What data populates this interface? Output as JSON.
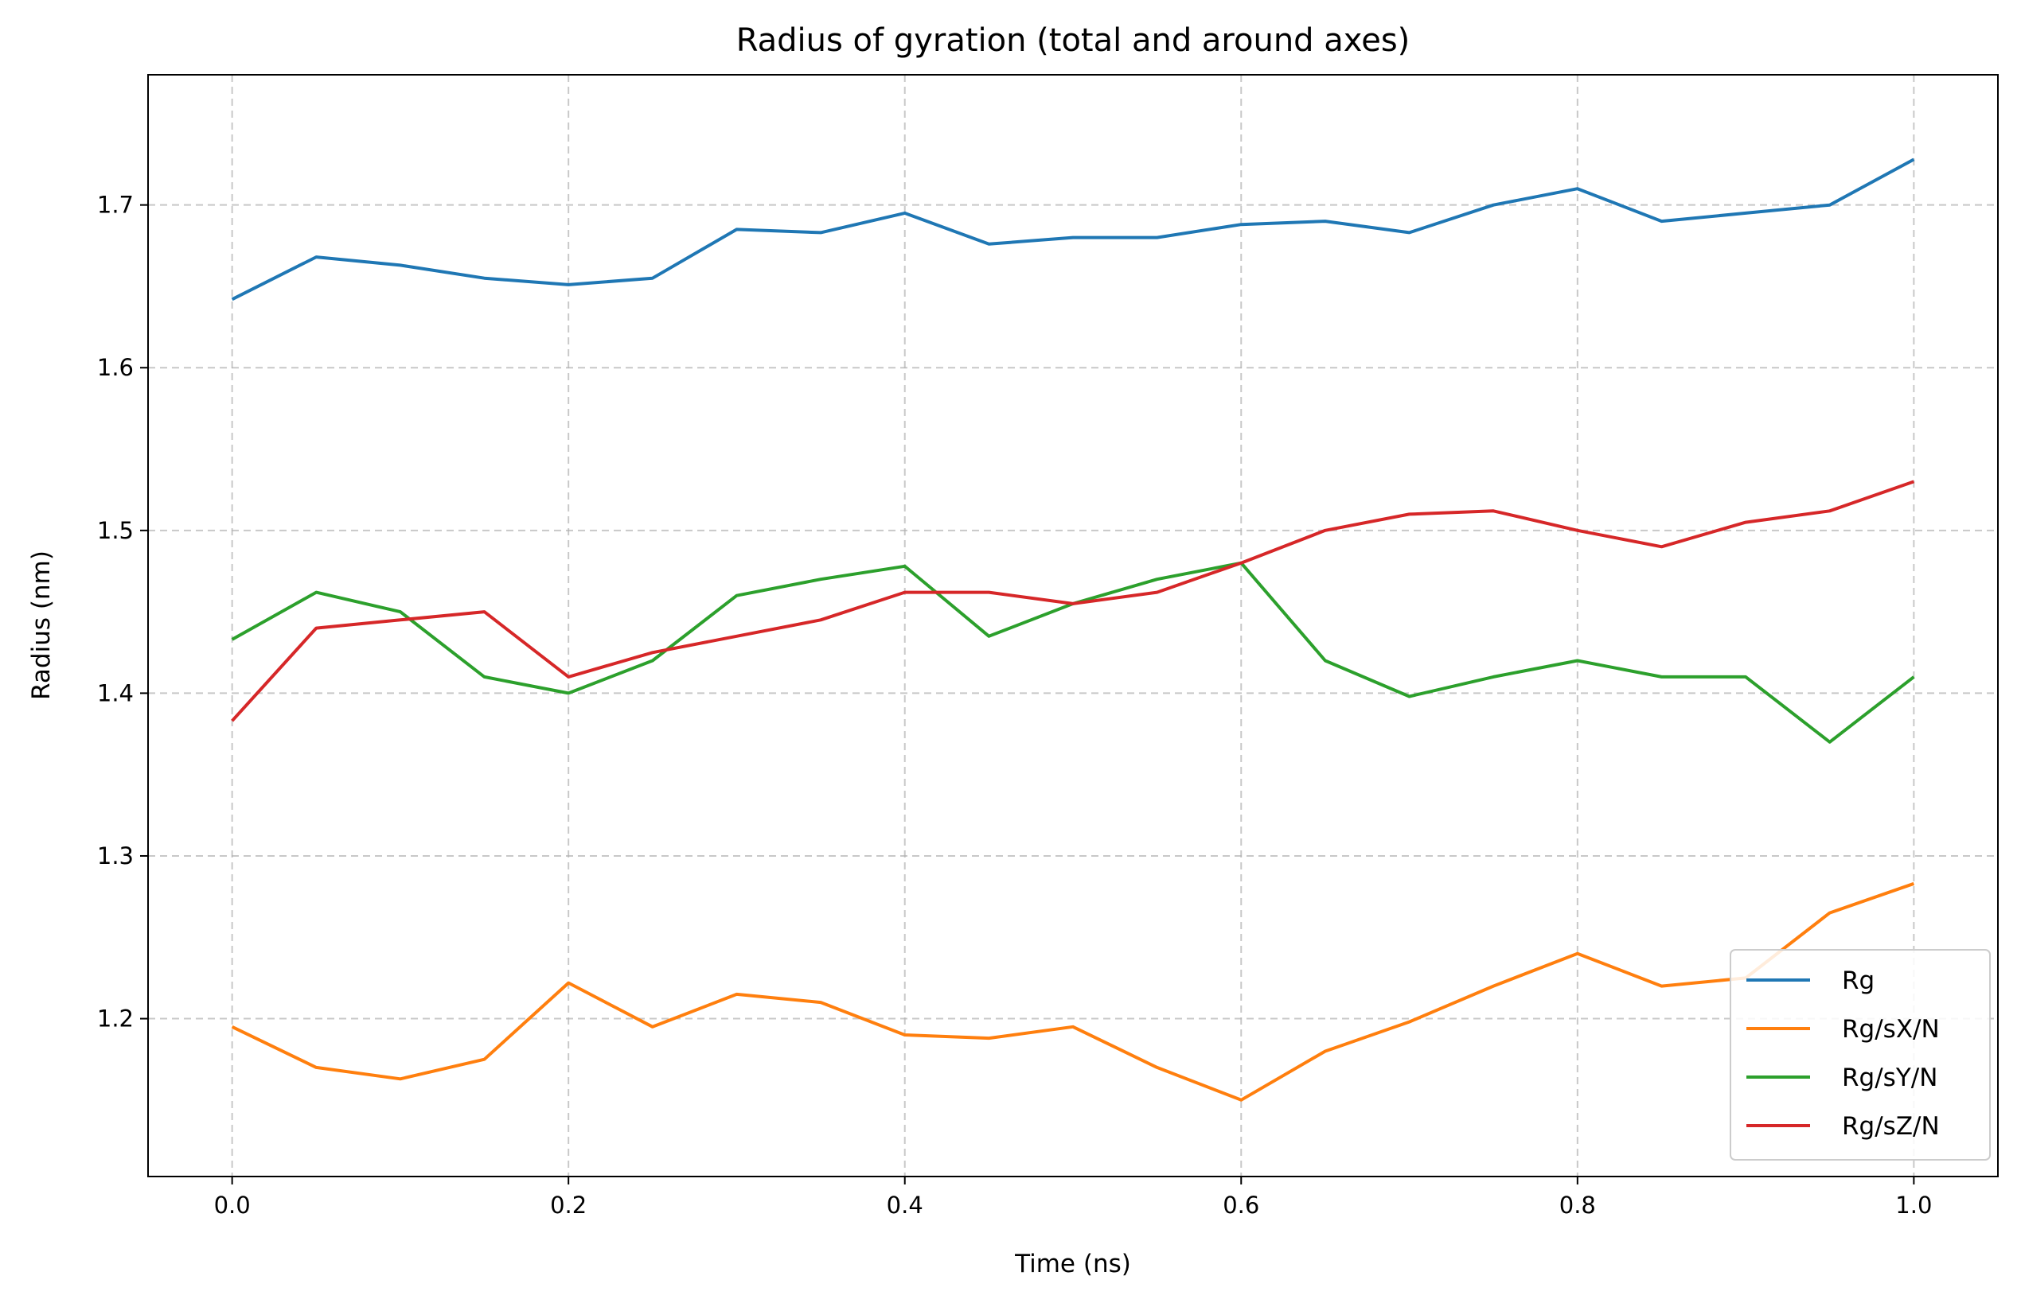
{
  "chart_data": {
    "type": "line",
    "title": "Radius of gyration (total and around axes)",
    "xlabel": "Time (ns)",
    "ylabel": "Radius (nm)",
    "xlim": [
      -0.05,
      1.05
    ],
    "ylim": [
      1.103,
      1.78
    ],
    "xticks": [
      0.0,
      0.2,
      0.4,
      0.6,
      0.8,
      1.0
    ],
    "xtick_labels": [
      "0.0",
      "0.2",
      "0.4",
      "0.6",
      "0.8",
      "1.0"
    ],
    "yticks": [
      1.2,
      1.3,
      1.4,
      1.5,
      1.6,
      1.7
    ],
    "ytick_labels": [
      "1.2",
      "1.3",
      "1.4",
      "1.5",
      "1.6",
      "1.7"
    ],
    "grid": true,
    "legend_position": "lower-right",
    "x": [
      0.0,
      0.05,
      0.1,
      0.15,
      0.2,
      0.25,
      0.3,
      0.35,
      0.4,
      0.45,
      0.5,
      0.55,
      0.6,
      0.65,
      0.7,
      0.75,
      0.8,
      0.85,
      0.9,
      0.95,
      1.0
    ],
    "series": [
      {
        "name": "Rg",
        "color": "#1f77b4",
        "values": [
          1.642,
          1.668,
          1.663,
          1.655,
          1.651,
          1.655,
          1.685,
          1.683,
          1.695,
          1.676,
          1.68,
          1.68,
          1.688,
          1.69,
          1.683,
          1.7,
          1.71,
          1.69,
          1.695,
          1.7,
          1.728
        ]
      },
      {
        "name": "Rg/sX/N",
        "color": "#ff7f0e",
        "values": [
          1.195,
          1.17,
          1.163,
          1.175,
          1.222,
          1.195,
          1.215,
          1.21,
          1.19,
          1.188,
          1.195,
          1.17,
          1.15,
          1.18,
          1.198,
          1.22,
          1.24,
          1.22,
          1.225,
          1.265,
          1.283
        ]
      },
      {
        "name": "Rg/sY/N",
        "color": "#2ca02c",
        "values": [
          1.433,
          1.462,
          1.45,
          1.41,
          1.4,
          1.42,
          1.46,
          1.47,
          1.478,
          1.435,
          1.455,
          1.47,
          1.48,
          1.42,
          1.398,
          1.41,
          1.42,
          1.41,
          1.41,
          1.37,
          1.41
        ]
      },
      {
        "name": "Rg/sZ/N",
        "color": "#d62728",
        "values": [
          1.383,
          1.44,
          1.445,
          1.45,
          1.41,
          1.425,
          1.435,
          1.445,
          1.462,
          1.462,
          1.455,
          1.462,
          1.48,
          1.5,
          1.51,
          1.512,
          1.5,
          1.49,
          1.505,
          1.512,
          1.53
        ]
      }
    ]
  }
}
